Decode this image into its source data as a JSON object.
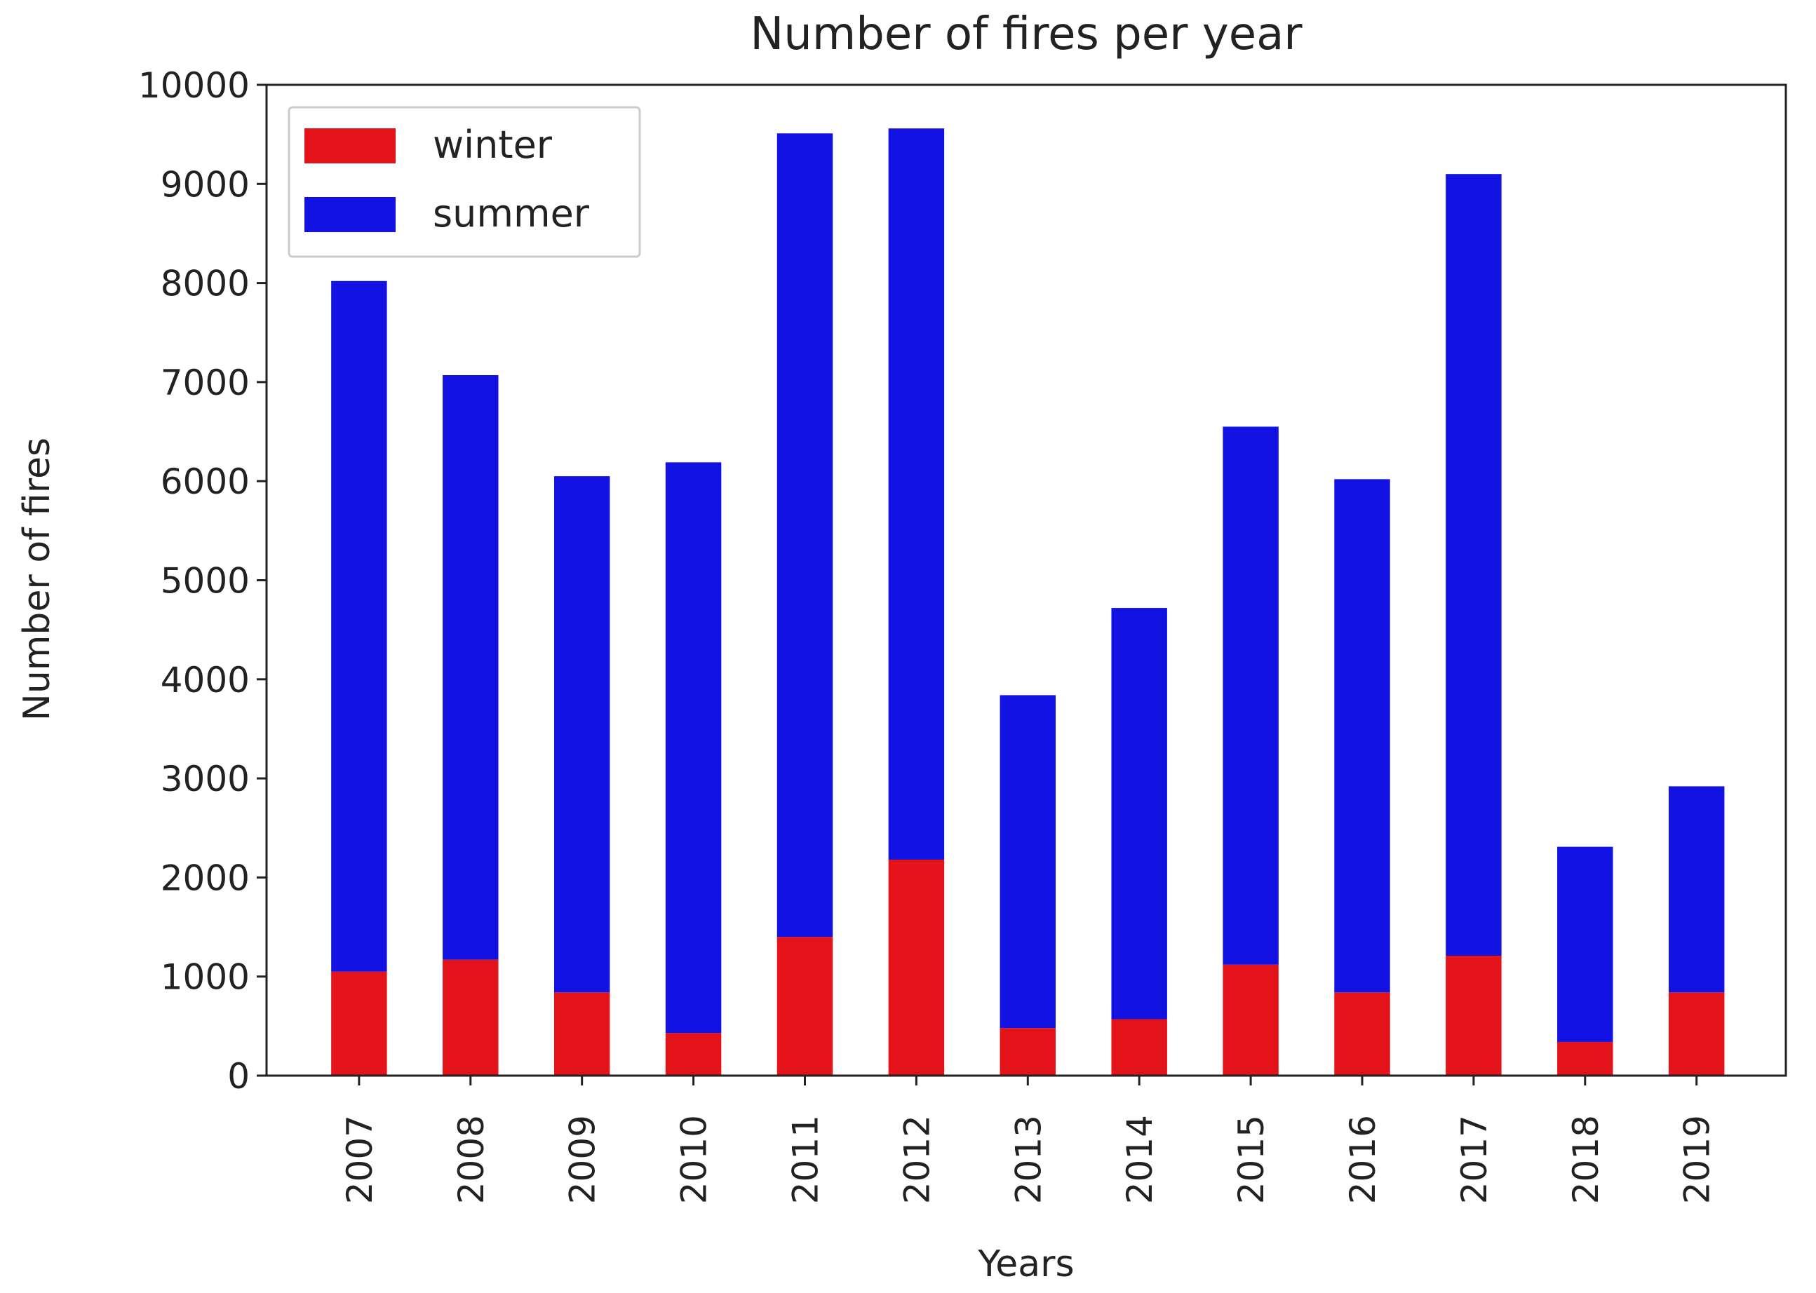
{
  "chart_data": {
    "type": "stacked_bar",
    "title": "Number of fires per year",
    "x_label": "Years",
    "y_label": "Number of fires",
    "categories": [
      "2007",
      "2008",
      "2009",
      "2010",
      "2011",
      "2012",
      "2013",
      "2014",
      "2015",
      "2016",
      "2017",
      "2018",
      "2019"
    ],
    "series": [
      {
        "name": "winter",
        "color": "#e41219",
        "values": [
          1050,
          1170,
          840,
          430,
          1400,
          2180,
          480,
          570,
          1120,
          840,
          1210,
          340,
          840
        ]
      },
      {
        "name": "summer",
        "color": "#1212e2",
        "values": [
          6970,
          5900,
          5210,
          5760,
          8110,
          7380,
          3360,
          4150,
          5430,
          5180,
          7890,
          1970,
          2080
        ]
      }
    ],
    "ylim": [
      0,
      10000
    ],
    "yticks": [
      0,
      1000,
      2000,
      3000,
      4000,
      5000,
      6000,
      7000,
      8000,
      9000,
      10000
    ],
    "grid": false,
    "legend": "upper left"
  }
}
